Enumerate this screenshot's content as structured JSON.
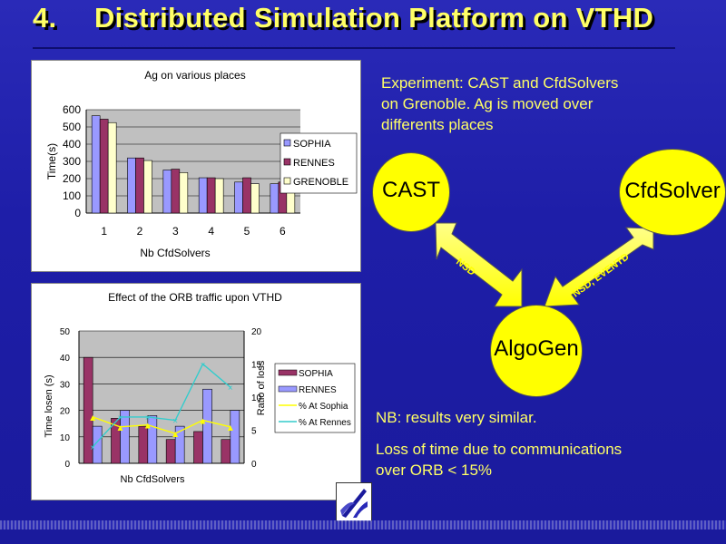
{
  "slide": {
    "number": "4.",
    "title": "Distributed Simulation Platform on VTHD",
    "experiment_text": [
      "Experiment: CAST and CfdSolvers",
      "on Grenoble. Ag is moved over",
      "differents places"
    ],
    "nb_text": "NB: results very similar.",
    "loss_text": [
      "Loss of time due to communications",
      "over ORB < 15%"
    ]
  },
  "diagram": {
    "cast": "CAST",
    "cfdsolver": "CfdSolver",
    "algogen": "AlgoGen",
    "arrow_left_label": "NSD",
    "arrow_right_label": "NSD, EVENTD"
  },
  "colors": {
    "background": "#1e1ea8",
    "title": "#ffff66",
    "node_fill": "#ffff00",
    "sophia": "#9999ff",
    "rennes": "#993366",
    "grenoble": "#ffffcc"
  },
  "chart_data": [
    {
      "type": "bar",
      "title": "Ag on various places",
      "xlabel": "Nb CfdSolvers",
      "ylabel": "Time(s)",
      "categories": [
        "1",
        "2",
        "3",
        "4",
        "5",
        "6"
      ],
      "ylim": [
        0,
        600
      ],
      "yticks": [
        "0",
        "100",
        "200",
        "300",
        "400",
        "500",
        "600"
      ],
      "grid": true,
      "legend": "right",
      "series": [
        {
          "name": "SOPHIA",
          "color": "#9999ff",
          "values": [
            565,
            320,
            250,
            205,
            180,
            170
          ]
        },
        {
          "name": "RENNES",
          "color": "#993366",
          "values": [
            545,
            320,
            255,
            205,
            205,
            180
          ]
        },
        {
          "name": "GRENOBLE",
          "color": "#ffffcc",
          "values": [
            525,
            305,
            235,
            200,
            170,
            165
          ]
        }
      ]
    },
    {
      "type": "bar",
      "title": "Effect of the ORB traffic upon VTHD",
      "xlabel": "Nb CfdSolvers",
      "ylabel": "Time losen (s)",
      "y2label": "Ratio of loss",
      "categories": [
        "1",
        "2",
        "3",
        "4",
        "5",
        "6"
      ],
      "ylim": [
        0,
        50
      ],
      "y2lim": [
        0,
        20
      ],
      "yticks": [
        "0",
        "10",
        "20",
        "30",
        "40",
        "50"
      ],
      "y2ticks": [
        "0",
        "5",
        "10",
        "15",
        "20"
      ],
      "grid": true,
      "legend": "right",
      "series": [
        {
          "name": "SOPHIA",
          "color": "#993366",
          "kind": "bar",
          "values": [
            40,
            17,
            14,
            9,
            12,
            9
          ]
        },
        {
          "name": "RENNES",
          "color": "#9999ff",
          "kind": "bar",
          "values": [
            14,
            20,
            18,
            14,
            28,
            20
          ]
        },
        {
          "name": "%  At Sophia",
          "color": "#ffff00",
          "kind": "line",
          "values": [
            7,
            5.5,
            5.8,
            4.5,
            6.5,
            5.5
          ]
        },
        {
          "name": "% At Rennes",
          "color": "#33cccc",
          "kind": "line",
          "values": [
            2.5,
            7,
            7,
            6.5,
            15,
            11.5
          ]
        }
      ]
    }
  ]
}
